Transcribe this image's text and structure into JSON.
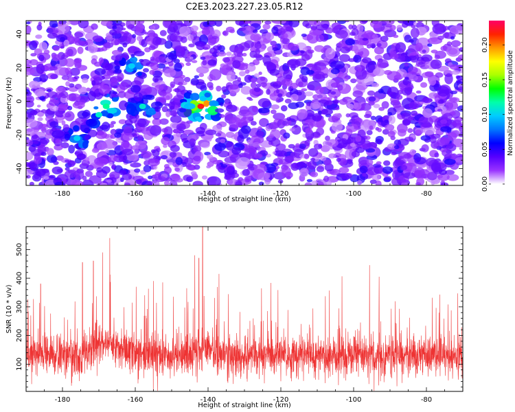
{
  "title": "C2E3.2023.227.23.05.R12",
  "chart_data": [
    {
      "type": "heatmap",
      "xlabel": "Height of straight line (km)",
      "ylabel": "Frequency (Hz)",
      "xlim": [
        -190,
        -70
      ],
      "ylim": [
        -50,
        48
      ],
      "x_ticks": [
        -180,
        -160,
        -140,
        -120,
        -100,
        -80
      ],
      "y_ticks": [
        -40,
        -20,
        0,
        20,
        40
      ],
      "colorbar": {
        "label": "Normalized spectral amplitude",
        "range": [
          0,
          0.235
        ],
        "ticks": [
          0.0,
          0.05,
          0.1,
          0.15,
          0.2
        ],
        "tick_labels": [
          "0.00",
          "0.05",
          "0.10",
          "0.15",
          "0.20"
        ],
        "colors": [
          "#ffffff",
          "#9933ff",
          "#5500ff",
          "#0000ff",
          "#0077ff",
          "#00ccff",
          "#00ffaa",
          "#00ff00",
          "#aaff00",
          "#ffff00",
          "#ff9900",
          "#ff2200",
          "#ff0066"
        ]
      },
      "hotspots": [
        {
          "x": -142,
          "y": -3,
          "amplitude": 0.22
        },
        {
          "x": -168,
          "y": -3,
          "amplitude": 0.12
        },
        {
          "x": -170,
          "y": -8,
          "amplitude": 0.11
        },
        {
          "x": -158,
          "y": -3,
          "amplitude": 0.11
        },
        {
          "x": -176,
          "y": -22,
          "amplitude": 0.1
        },
        {
          "x": -161,
          "y": 21,
          "amplitude": 0.1
        }
      ],
      "background_level": 0.04
    },
    {
      "type": "line",
      "xlabel": "Height of straight line (km)",
      "ylabel": "SNR (10 * v/v)",
      "xlim": [
        -190,
        -70
      ],
      "ylim": [
        5,
        580
      ],
      "x_ticks": [
        -180,
        -160,
        -140,
        -120,
        -100,
        -80
      ],
      "y_ticks": [
        100,
        200,
        300,
        400,
        500
      ],
      "color": "#ee3333",
      "baseline": 130,
      "notable_peaks": [
        {
          "x": -141.5,
          "y": 580
        },
        {
          "x": -171.5,
          "y": 460
        },
        {
          "x": -169,
          "y": 490
        },
        {
          "x": -167,
          "y": 540
        },
        {
          "x": -174.5,
          "y": 455
        },
        {
          "x": -142.5,
          "y": 470
        },
        {
          "x": -137,
          "y": 415
        },
        {
          "x": -93,
          "y": 405
        },
        {
          "x": -186,
          "y": 380
        },
        {
          "x": -155,
          "y": 390
        }
      ]
    }
  ]
}
